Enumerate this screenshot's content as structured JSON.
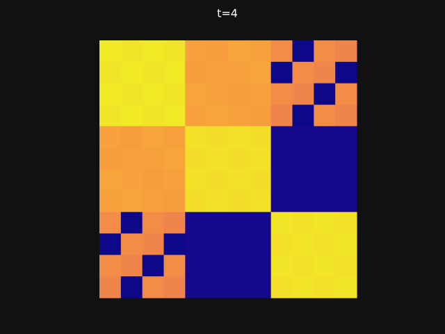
{
  "chart_data": {
    "type": "heatmap",
    "title": "t=4",
    "colormap": "plasma",
    "clim": [
      0,
      1
    ],
    "z": [
      [
        0.96,
        0.95,
        0.96,
        0.95,
        0.78,
        0.77,
        0.79,
        0.78,
        0.72,
        0,
        0.72,
        0.7
      ],
      [
        0.95,
        0.96,
        0.95,
        0.96,
        0.77,
        0.78,
        0.78,
        0.79,
        0,
        0.72,
        0.7,
        0
      ],
      [
        0.96,
        0.95,
        0.96,
        0.95,
        0.79,
        0.78,
        0.77,
        0.78,
        0.72,
        0.7,
        0,
        0.72
      ],
      [
        0.95,
        0.96,
        0.95,
        0.96,
        0.78,
        0.79,
        0.78,
        0.77,
        0.7,
        0,
        0.72,
        0.7
      ],
      [
        0.78,
        0.77,
        0.79,
        0.78,
        0.94,
        0.93,
        0.94,
        0.93,
        0.02,
        0.02,
        0.02,
        0.02
      ],
      [
        0.77,
        0.78,
        0.78,
        0.79,
        0.93,
        0.94,
        0.93,
        0.94,
        0.02,
        0.02,
        0.02,
        0.02
      ],
      [
        0.79,
        0.78,
        0.77,
        0.78,
        0.94,
        0.93,
        0.94,
        0.93,
        0.02,
        0.02,
        0.02,
        0.02
      ],
      [
        0.78,
        0.79,
        0.78,
        0.77,
        0.93,
        0.94,
        0.93,
        0.94,
        0.02,
        0.02,
        0.02,
        0.02
      ],
      [
        0.72,
        0,
        0.72,
        0.7,
        0.02,
        0.02,
        0.02,
        0.02,
        0.95,
        0.94,
        0.95,
        0.94
      ],
      [
        0,
        0.72,
        0.7,
        0,
        0.02,
        0.02,
        0.02,
        0.02,
        0.94,
        0.95,
        0.94,
        0.95
      ],
      [
        0.72,
        0.7,
        0,
        0.72,
        0.02,
        0.02,
        0.02,
        0.02,
        0.95,
        0.94,
        0.95,
        0.94
      ],
      [
        0.7,
        0,
        0.72,
        0.7,
        0.02,
        0.02,
        0.02,
        0.02,
        0.94,
        0.95,
        0.94,
        0.95
      ]
    ]
  }
}
